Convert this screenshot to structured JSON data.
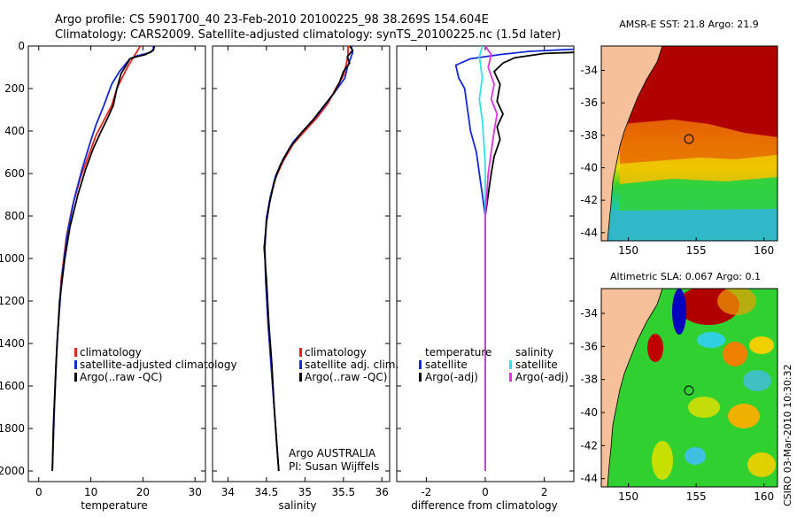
{
  "header": {
    "title_line1": "Argo profile: CS 5901700_40 23-Feb-2010 20100225_98 38.269S 154.604E",
    "title_line2": "Climatology: CARS2009. Satellite-adjusted climatology: synTS_20100225.nc (1.5d later)"
  },
  "credits": {
    "org": "Argo AUSTRALIA",
    "pi": "PI: Susan Wijffels",
    "side_stamp": "CSIRO 03-Mar-2010 10:30:32"
  },
  "colors": {
    "climatology": "#e8231c",
    "satellite": "#1428d8",
    "argo": "#000000",
    "sat_salinity": "#30e0e8",
    "argo_salinity": "#e030e0"
  },
  "chart_data": [
    {
      "type": "line",
      "name": "temperature",
      "xlabel": "temperature",
      "ylabel": "",
      "xlim": [
        -2,
        32
      ],
      "ylim": [
        2050,
        0
      ],
      "x_ticks": [
        0,
        10,
        20,
        30
      ],
      "y_ticks": [
        0,
        200,
        400,
        600,
        800,
        1000,
        1200,
        1400,
        1600,
        1800,
        2000
      ],
      "legend": [
        "climatology",
        "satellite-adjusted climatology",
        "Argo(..raw -QC)"
      ],
      "series": [
        {
          "name": "climatology",
          "color_key": "climatology",
          "points": [
            [
              19.5,
              0
            ],
            [
              19,
              20
            ],
            [
              18.5,
              40
            ],
            [
              18,
              60
            ],
            [
              17,
              100
            ],
            [
              16,
              150
            ],
            [
              15,
              200
            ],
            [
              14,
              280
            ],
            [
              12.5,
              350
            ],
            [
              11,
              420
            ],
            [
              9.5,
              520
            ],
            [
              8,
              620
            ],
            [
              6.5,
              750
            ],
            [
              5.3,
              900
            ],
            [
              4.3,
              1100
            ],
            [
              3.5,
              1400
            ],
            [
              3,
              1700
            ],
            [
              2.6,
              2000
            ]
          ]
        },
        {
          "name": "satellite",
          "color_key": "satellite",
          "points": [
            [
              22,
              0
            ],
            [
              22,
              15
            ],
            [
              21.5,
              30
            ],
            [
              19,
              45
            ],
            [
              17.5,
              60
            ],
            [
              16.5,
              90
            ],
            [
              15.5,
              120
            ],
            [
              14,
              180
            ],
            [
              12.5,
              280
            ],
            [
              11,
              370
            ],
            [
              9.8,
              460
            ],
            [
              8.3,
              580
            ],
            [
              6.8,
              720
            ],
            [
              5.5,
              880
            ],
            [
              4.4,
              1100
            ],
            [
              3.5,
              1400
            ],
            [
              3,
              1700
            ],
            [
              2.6,
              2000
            ]
          ]
        },
        {
          "name": "argo",
          "color_key": "argo",
          "points": [
            [
              22.2,
              0
            ],
            [
              22,
              20
            ],
            [
              20.5,
              40
            ],
            [
              18.8,
              50
            ],
            [
              17.5,
              60
            ],
            [
              16.8,
              90
            ],
            [
              15.8,
              130
            ],
            [
              15,
              200
            ],
            [
              14.3,
              280
            ],
            [
              13.2,
              340
            ],
            [
              12,
              400
            ],
            [
              10.5,
              480
            ],
            [
              9,
              580
            ],
            [
              7.5,
              700
            ],
            [
              6,
              850
            ],
            [
              5,
              1000
            ],
            [
              4,
              1200
            ],
            [
              3.3,
              1500
            ],
            [
              2.8,
              1800
            ],
            [
              2.6,
              2000
            ]
          ]
        }
      ]
    },
    {
      "type": "line",
      "name": "salinity",
      "xlabel": "salinity",
      "xlim": [
        33.8,
        36.1
      ],
      "ylim": [
        2050,
        0
      ],
      "x_ticks": [
        34,
        34.5,
        35,
        35.5,
        36
      ],
      "legend": [
        "climatology",
        "satellite adj. clim.",
        "Argo(..raw -QC)"
      ],
      "series": [
        {
          "name": "climatology",
          "color_key": "climatology",
          "points": [
            [
              35.56,
              0
            ],
            [
              35.56,
              40
            ],
            [
              35.54,
              80
            ],
            [
              35.5,
              140
            ],
            [
              35.4,
              200
            ],
            [
              35.3,
              270
            ],
            [
              35.15,
              340
            ],
            [
              35,
              400
            ],
            [
              34.85,
              460
            ],
            [
              34.72,
              540
            ],
            [
              34.62,
              620
            ],
            [
              34.55,
              720
            ],
            [
              34.5,
              820
            ],
            [
              34.48,
              950
            ],
            [
              34.49,
              1100
            ],
            [
              34.52,
              1300
            ],
            [
              34.56,
              1500
            ],
            [
              34.6,
              1700
            ],
            [
              34.64,
              1900
            ],
            [
              34.66,
              2000
            ]
          ]
        },
        {
          "name": "satellite",
          "color_key": "satellite",
          "points": [
            [
              35.6,
              0
            ],
            [
              35.62,
              30
            ],
            [
              35.58,
              70
            ],
            [
              35.55,
              100
            ],
            [
              35.52,
              150
            ],
            [
              35.42,
              200
            ],
            [
              35.3,
              260
            ],
            [
              35.15,
              330
            ],
            [
              35,
              390
            ],
            [
              34.85,
              450
            ],
            [
              34.72,
              530
            ],
            [
              34.62,
              610
            ],
            [
              34.55,
              710
            ],
            [
              34.5,
              810
            ],
            [
              34.48,
              950
            ],
            [
              34.49,
              1100
            ],
            [
              34.52,
              1300
            ],
            [
              34.56,
              1500
            ],
            [
              34.6,
              1700
            ],
            [
              34.64,
              1900
            ],
            [
              34.66,
              2000
            ]
          ]
        },
        {
          "name": "argo",
          "color_key": "argo",
          "points": [
            [
              35.58,
              0
            ],
            [
              35.62,
              20
            ],
            [
              35.55,
              50
            ],
            [
              35.58,
              80
            ],
            [
              35.5,
              120
            ],
            [
              35.45,
              170
            ],
            [
              35.38,
              220
            ],
            [
              35.25,
              280
            ],
            [
              35.1,
              350
            ],
            [
              34.95,
              410
            ],
            [
              34.8,
              480
            ],
            [
              34.68,
              560
            ],
            [
              34.6,
              640
            ],
            [
              34.54,
              740
            ],
            [
              34.5,
              830
            ],
            [
              34.47,
              950
            ],
            [
              34.5,
              1100
            ],
            [
              34.53,
              1300
            ],
            [
              34.57,
              1500
            ],
            [
              34.6,
              1700
            ],
            [
              34.64,
              1900
            ],
            [
              34.66,
              2000
            ]
          ]
        }
      ]
    },
    {
      "type": "line",
      "name": "difference",
      "xlabel": "difference from climatology",
      "xlim": [
        -3,
        3
      ],
      "ylim": [
        2050,
        0
      ],
      "x_ticks": [
        -2,
        0,
        2
      ],
      "legend_left": [
        "temperature",
        "satellite",
        "Argo(-adj)"
      ],
      "legend_right": [
        "salinity",
        "satellite",
        "Argo(-adj)"
      ],
      "series": [
        {
          "name": "temperature satellite",
          "color_key": "satellite",
          "points": [
            [
              3,
              15
            ],
            [
              1.5,
              25
            ],
            [
              0.5,
              40
            ],
            [
              -0.5,
              60
            ],
            [
              -1,
              90
            ],
            [
              -0.9,
              150
            ],
            [
              -0.7,
              200
            ],
            [
              -0.6,
              300
            ],
            [
              -0.5,
              400
            ],
            [
              -0.3,
              500
            ],
            [
              -0.2,
              600
            ],
            [
              -0.1,
              700
            ],
            [
              0,
              800
            ],
            [
              0,
              2000
            ]
          ]
        },
        {
          "name": "temperature argo",
          "color_key": "argo",
          "points": [
            [
              3,
              30
            ],
            [
              2,
              35
            ],
            [
              1,
              55
            ],
            [
              0.6,
              80
            ],
            [
              0.3,
              120
            ],
            [
              0.5,
              180
            ],
            [
              0.4,
              260
            ],
            [
              0.6,
              320
            ],
            [
              0.4,
              380
            ],
            [
              0.5,
              440
            ],
            [
              0.3,
              520
            ],
            [
              0.2,
              600
            ],
            [
              0.1,
              700
            ],
            [
              0,
              800
            ],
            [
              0,
              2000
            ]
          ]
        },
        {
          "name": "salinity satellite",
          "color_key": "sat_salinity",
          "points": [
            [
              -0.1,
              0
            ],
            [
              -0.2,
              50
            ],
            [
              -0.1,
              150
            ],
            [
              -0.2,
              250
            ],
            [
              -0.1,
              350
            ],
            [
              -0.05,
              450
            ],
            [
              0,
              550
            ],
            [
              0,
              2000
            ]
          ]
        },
        {
          "name": "salinity argo",
          "color_key": "argo_salinity",
          "points": [
            [
              0,
              0
            ],
            [
              0.2,
              40
            ],
            [
              0.1,
              100
            ],
            [
              0.3,
              180
            ],
            [
              0.2,
              250
            ],
            [
              0.4,
              320
            ],
            [
              0.3,
              400
            ],
            [
              0.2,
              500
            ],
            [
              0.1,
              600
            ],
            [
              0.05,
              700
            ],
            [
              0,
              800
            ],
            [
              0,
              2000
            ]
          ]
        }
      ]
    },
    {
      "type": "heatmap",
      "name": "sst-map",
      "title": "AMSR-E SST: 21.8 Argo: 21.9",
      "xlim": [
        148,
        161
      ],
      "ylim": [
        -44.5,
        -32.5
      ],
      "x_ticks": [
        150,
        155,
        160
      ],
      "y_ticks": [
        -34,
        -36,
        -38,
        -40,
        -42,
        -44
      ],
      "argo_position": [
        154.6,
        -38.27
      ]
    },
    {
      "type": "heatmap",
      "name": "sla-map",
      "title": "Altimetric SLA: 0.067 Argo: 0.1",
      "xlim": [
        148,
        161
      ],
      "ylim": [
        -44.5,
        -32.5
      ],
      "x_ticks": [
        150,
        155,
        160
      ],
      "y_ticks": [
        -34,
        -36,
        -38,
        -40,
        -42,
        -44
      ],
      "argo_position": [
        154.6,
        -38.27
      ]
    }
  ]
}
